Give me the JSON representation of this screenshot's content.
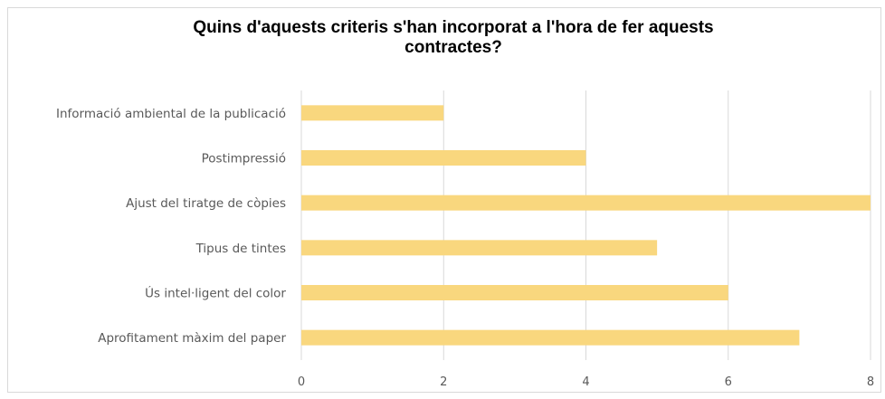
{
  "chart_data": {
    "type": "bar",
    "orientation": "horizontal",
    "title_line1": "Quins d'aquests criteris s'han incorporat a l'hora de fer aquests",
    "title_line2": "contractes?",
    "categories": [
      "Informació ambiental de la publicació",
      "Postimpressió",
      "Ajust del tiratge de còpies",
      "Tipus de tintes",
      "Ús intel·ligent del color",
      "Aprofitament màxim del paper"
    ],
    "values": [
      2,
      4,
      8,
      5,
      6,
      7
    ],
    "xlim": [
      0,
      8
    ],
    "xticks": [
      "0",
      "2",
      "4",
      "6",
      "8"
    ],
    "grid": true,
    "legend": "none",
    "bar_color": "#f9d77e",
    "grid_color": "#d9d9d9"
  }
}
